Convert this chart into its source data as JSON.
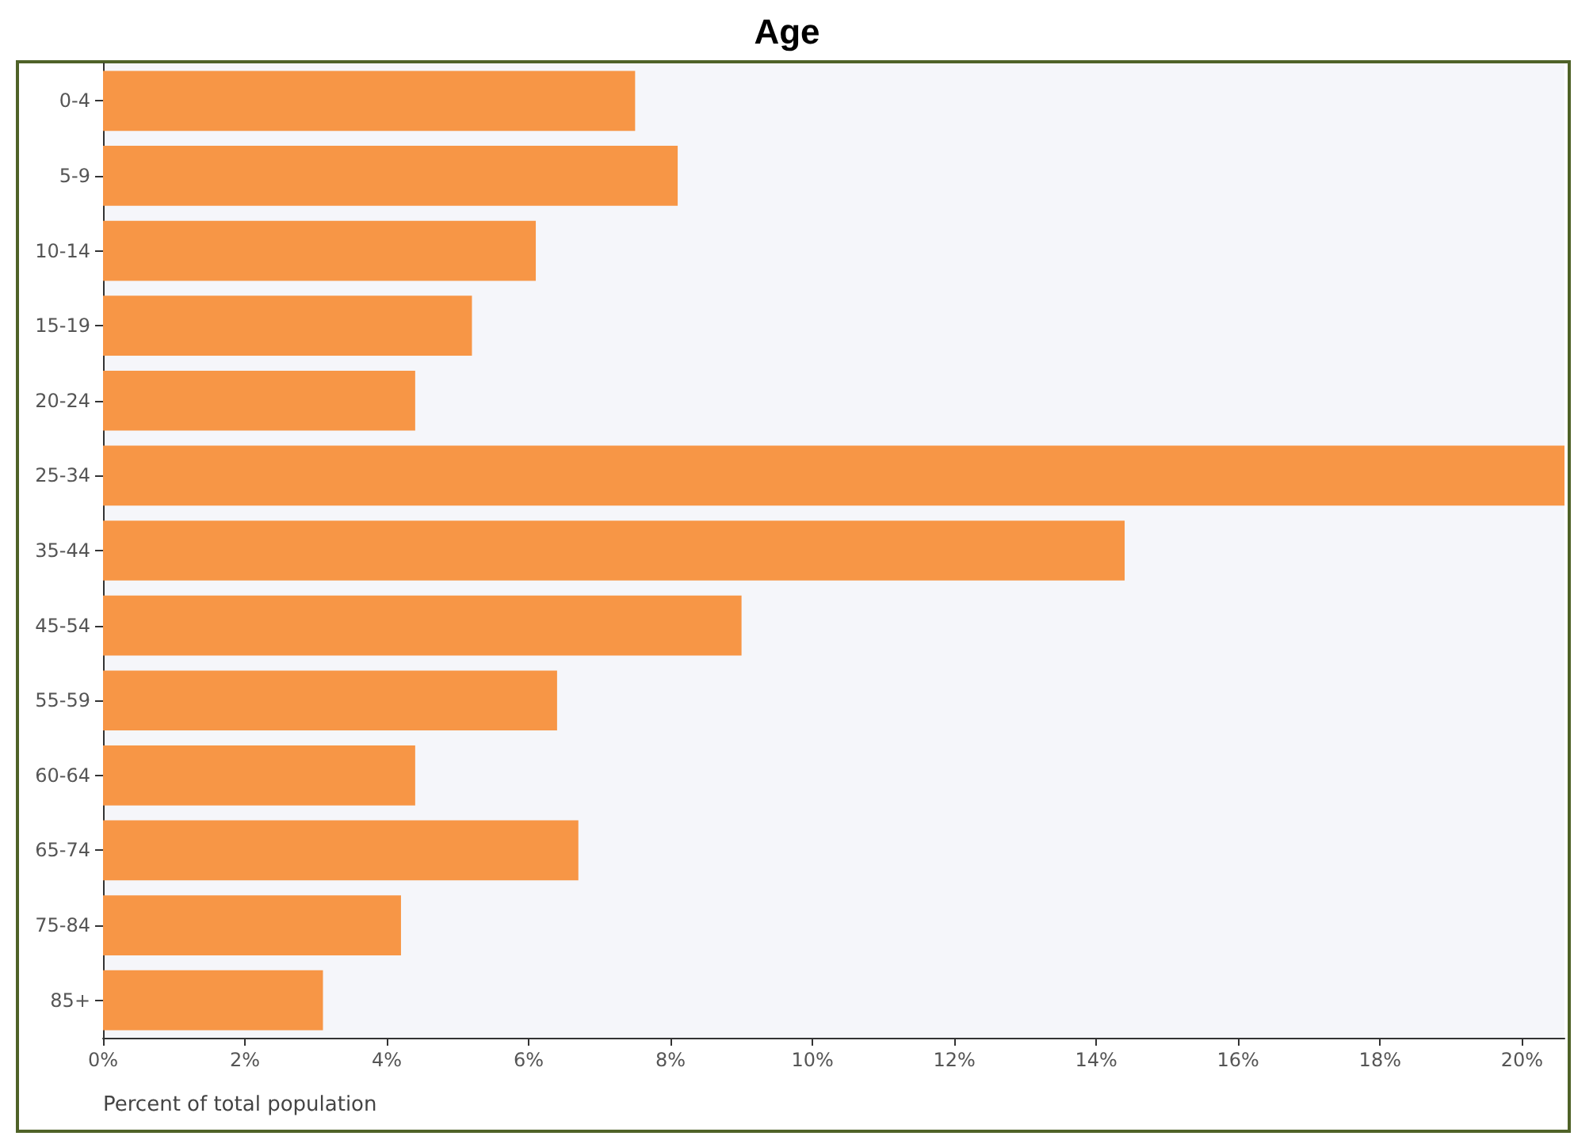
{
  "chart_data": {
    "type": "bar",
    "orientation": "horizontal",
    "title": "Age",
    "xlabel": "Percent of total population",
    "categories": [
      "0-4",
      "5-9",
      "10-14",
      "15-19",
      "20-24",
      "25-34",
      "35-44",
      "45-54",
      "55-59",
      "60-64",
      "65-74",
      "75-84",
      "85+"
    ],
    "values": [
      7.5,
      8.1,
      6.1,
      5.2,
      4.4,
      20.6,
      14.4,
      9.0,
      6.4,
      4.4,
      6.7,
      4.2,
      3.1
    ],
    "color": "#f79646",
    "xlim": [
      0,
      20.6
    ],
    "xticks": [
      {
        "value": 0,
        "label": "0%"
      },
      {
        "value": 2,
        "label": "2%"
      },
      {
        "value": 4,
        "label": "4%"
      },
      {
        "value": 6,
        "label": "6%"
      },
      {
        "value": 8,
        "label": "8%"
      },
      {
        "value": 10,
        "label": "10%"
      },
      {
        "value": 12,
        "label": "12%"
      },
      {
        "value": 14,
        "label": "14%"
      },
      {
        "value": 16,
        "label": "16%"
      },
      {
        "value": 18,
        "label": "18%"
      },
      {
        "value": 20,
        "label": "20%"
      }
    ],
    "grid": false
  }
}
